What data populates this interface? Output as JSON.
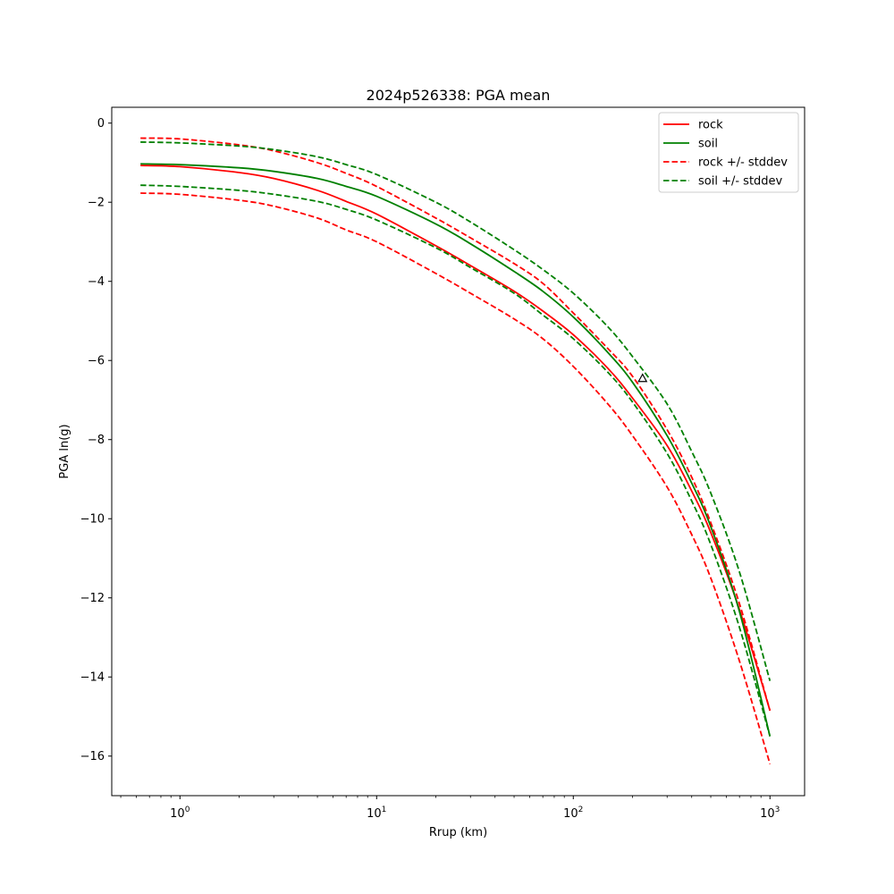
{
  "chart_data": {
    "type": "line",
    "title": "2024p526338: PGA mean",
    "xlabel": "Rrup (km)",
    "ylabel": "PGA ln(g)",
    "xscale": "log",
    "xlim": [
      0.45,
      1500
    ],
    "ylim": [
      -17,
      0.4
    ],
    "x_tick_values": [
      1,
      10,
      100,
      1000
    ],
    "x_tick_labels": [
      {
        "base": "10",
        "exp": "0"
      },
      {
        "base": "10",
        "exp": "1"
      },
      {
        "base": "10",
        "exp": "2"
      },
      {
        "base": "10",
        "exp": "3"
      }
    ],
    "y_ticks": [
      0,
      -2,
      -4,
      -6,
      -8,
      -10,
      -12,
      -14,
      -16
    ],
    "y_tick_labels": [
      "0",
      "−2",
      "−4",
      "−6",
      "−8",
      "−10",
      "−12",
      "−14",
      "−16"
    ],
    "grid": false,
    "legend_position": "top-right",
    "legend": [
      {
        "label": "rock",
        "color": "#ff0000",
        "dashed": false
      },
      {
        "label": "soil",
        "color": "#008000",
        "dashed": false
      },
      {
        "label": "rock +/- stddev",
        "color": "#ff0000",
        "dashed": true
      },
      {
        "label": "soil +/- stddev",
        "color": "#008000",
        "dashed": true
      }
    ],
    "x": [
      0.63,
      1,
      2,
      3,
      5,
      7,
      10,
      20,
      30,
      50,
      70,
      100,
      150,
      200,
      300,
      400,
      500,
      700,
      1000
    ],
    "series": [
      {
        "name": "rock",
        "color": "#ff0000",
        "dashed": false,
        "values": [
          -1.07,
          -1.1,
          -1.25,
          -1.4,
          -1.7,
          -1.98,
          -2.3,
          -3.1,
          -3.6,
          -4.25,
          -4.75,
          -5.35,
          -6.2,
          -6.95,
          -8.15,
          -9.3,
          -10.35,
          -12.3,
          -14.85
        ]
      },
      {
        "name": "soil",
        "color": "#008000",
        "dashed": false,
        "values": [
          -1.03,
          -1.05,
          -1.13,
          -1.22,
          -1.4,
          -1.6,
          -1.85,
          -2.55,
          -3.05,
          -3.75,
          -4.25,
          -4.9,
          -5.8,
          -6.55,
          -7.9,
          -9.1,
          -10.2,
          -12.35,
          -15.5
        ]
      },
      {
        "name": "rock +/- stddev",
        "color": "#ff0000",
        "dashed": true,
        "values": [
          -0.38,
          -0.4,
          -0.55,
          -0.7,
          -1.0,
          -1.27,
          -1.6,
          -2.4,
          -2.9,
          -3.55,
          -4.05,
          -4.8,
          -5.7,
          -6.4,
          -7.75,
          -8.95,
          -10.1,
          -12.15,
          -14.85
        ]
      },
      {
        "name": "",
        "color": "#ff0000",
        "dashed": true,
        "values": [
          -1.77,
          -1.8,
          -1.95,
          -2.1,
          -2.4,
          -2.7,
          -3.0,
          -3.8,
          -4.3,
          -4.95,
          -5.45,
          -6.15,
          -7.1,
          -7.9,
          -9.2,
          -10.4,
          -11.5,
          -13.6,
          -16.2
        ]
      },
      {
        "name": "soil +/- stddev",
        "color": "#008000",
        "dashed": true,
        "values": [
          -0.48,
          -0.5,
          -0.58,
          -0.67,
          -0.85,
          -1.05,
          -1.3,
          -2.0,
          -2.5,
          -3.2,
          -3.7,
          -4.3,
          -5.15,
          -5.9,
          -7.1,
          -8.3,
          -9.35,
          -11.35,
          -14.1
        ]
      },
      {
        "name": "",
        "color": "#008000",
        "dashed": true,
        "values": [
          -1.57,
          -1.6,
          -1.7,
          -1.8,
          -1.98,
          -2.18,
          -2.45,
          -3.15,
          -3.65,
          -4.3,
          -4.85,
          -5.45,
          -6.3,
          -7.05,
          -8.35,
          -9.55,
          -10.65,
          -12.75,
          -15.5
        ]
      }
    ],
    "observations": [
      {
        "name": "observation",
        "marker": "triangle",
        "color": "#000000",
        "x": 225,
        "y": -6.45
      }
    ]
  }
}
